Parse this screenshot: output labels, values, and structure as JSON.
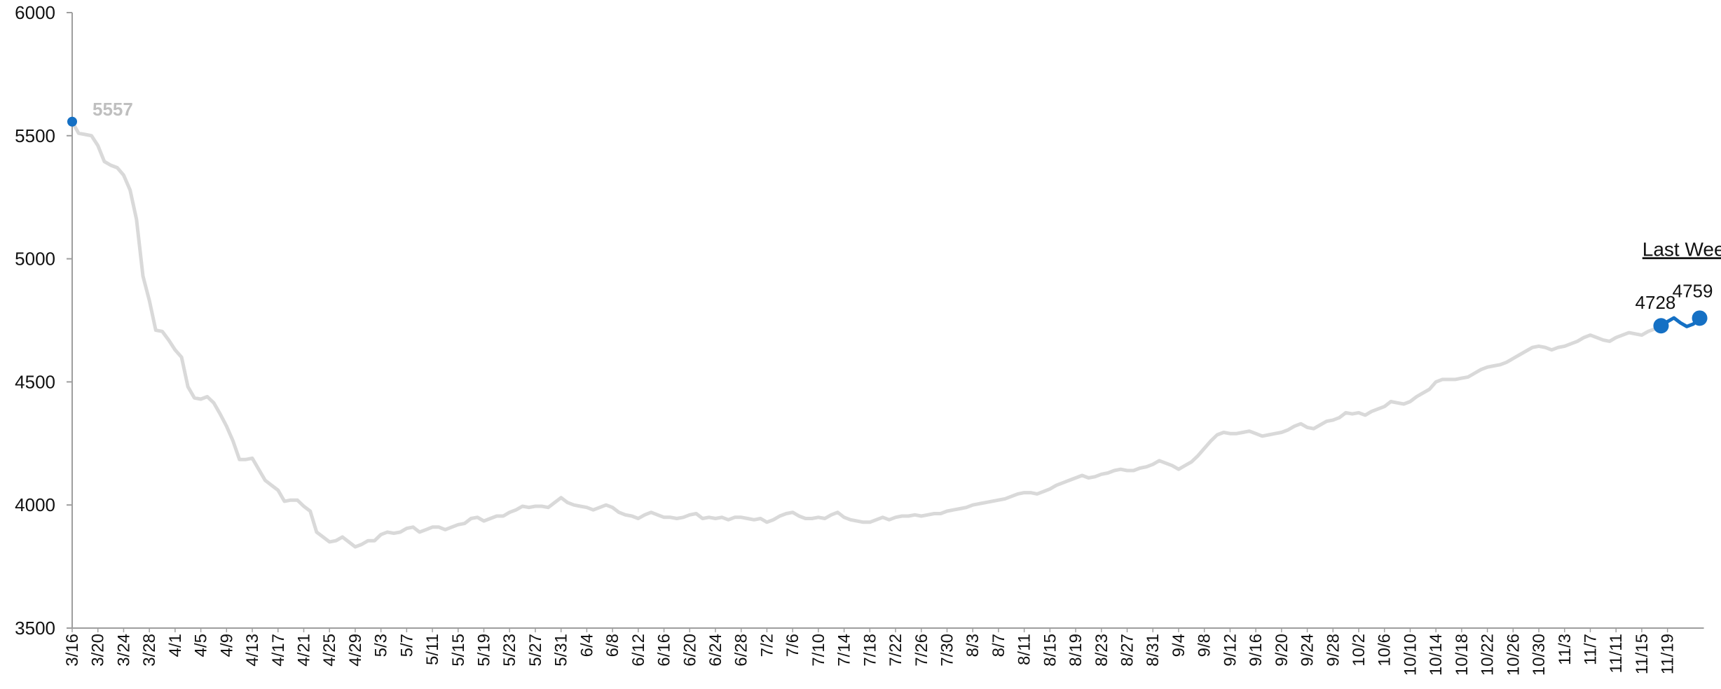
{
  "chart_data": {
    "type": "line",
    "title": "",
    "xlabel": "",
    "ylabel": "",
    "ylim": [
      3500,
      6000
    ],
    "yticks": [
      "6000",
      "5500",
      "5000",
      "4500",
      "4000",
      "3500"
    ],
    "xticks": [
      "3/16",
      "3/20",
      "3/24",
      "3/28",
      "4/1",
      "4/5",
      "4/9",
      "4/13",
      "4/17",
      "4/21",
      "4/25",
      "4/29",
      "5/3",
      "5/7",
      "5/11",
      "5/15",
      "5/19",
      "5/23",
      "5/27",
      "5/31",
      "6/4",
      "6/8",
      "6/12",
      "6/16",
      "6/20",
      "6/24",
      "6/28",
      "7/2",
      "7/6",
      "7/10",
      "7/14",
      "7/18",
      "7/22",
      "7/26",
      "7/30",
      "8/3",
      "8/7",
      "8/11",
      "8/15",
      "8/19",
      "8/23",
      "8/27",
      "8/31",
      "9/4",
      "9/8",
      "9/12",
      "9/16",
      "9/20",
      "9/24",
      "9/28",
      "10/2",
      "10/6",
      "10/10",
      "10/14",
      "10/18",
      "10/22",
      "10/26",
      "10/30",
      "11/3",
      "11/7",
      "11/11",
      "11/15",
      "11/19"
    ],
    "grid": false,
    "series": [
      {
        "role": "history",
        "color": "#d9d9d9",
        "x_start": "3/16",
        "x_end": "11/13",
        "values": [
          5557,
          5510,
          5505,
          5500,
          5460,
          5395,
          5380,
          5370,
          5340,
          5280,
          5160,
          4930,
          4830,
          4710,
          4705,
          4670,
          4630,
          4600,
          4480,
          4435,
          4430,
          4440,
          4415,
          4370,
          4320,
          4260,
          4185,
          4185,
          4190,
          4145,
          4100,
          4080,
          4060,
          4015,
          4020,
          4020,
          3995,
          3975,
          3890,
          3870,
          3850,
          3855,
          3870,
          3850,
          3830,
          3840,
          3855,
          3855,
          3880,
          3890,
          3885,
          3890,
          3905,
          3910,
          3890,
          3900,
          3910,
          3910,
          3900,
          3910,
          3920,
          3925,
          3945,
          3950,
          3935,
          3945,
          3955,
          3955,
          3970,
          3980,
          3995,
          3990,
          3995,
          3995,
          3990,
          4010,
          4030,
          4010,
          4000,
          3995,
          3990,
          3980,
          3990,
          4000,
          3990,
          3970,
          3960,
          3955,
          3945,
          3960,
          3970,
          3960,
          3950,
          3950,
          3945,
          3950,
          3960,
          3965,
          3945,
          3950,
          3945,
          3950,
          3940,
          3950,
          3950,
          3945,
          3940,
          3945,
          3930,
          3940,
          3955,
          3965,
          3970,
          3955,
          3945,
          3945,
          3950,
          3945,
          3960,
          3970,
          3950,
          3940,
          3935,
          3930,
          3930,
          3940,
          3950,
          3940,
          3950,
          3955,
          3955,
          3960,
          3955,
          3960,
          3965,
          3965,
          3975,
          3980,
          3985,
          3990,
          4000,
          4005,
          4010,
          4015,
          4020,
          4025,
          4035,
          4045,
          4050,
          4050,
          4045,
          4055,
          4065,
          4080,
          4090,
          4100,
          4110,
          4120,
          4110,
          4115,
          4125,
          4130,
          4140,
          4145,
          4140,
          4140,
          4150,
          4155,
          4165,
          4180,
          4170,
          4160,
          4145,
          4160,
          4175,
          4200,
          4230,
          4260,
          4285,
          4295,
          4290,
          4290,
          4295,
          4300,
          4290,
          4280,
          4285,
          4290,
          4295,
          4305,
          4320,
          4330,
          4315,
          4310,
          4325,
          4340,
          4345,
          4355,
          4375,
          4370,
          4375,
          4365,
          4380,
          4390,
          4400,
          4420,
          4415,
          4410,
          4420,
          4440,
          4455,
          4470,
          4500,
          4510,
          4510,
          4510,
          4515,
          4520,
          4535,
          4550,
          4560,
          4565,
          4570,
          4580,
          4595,
          4610,
          4625,
          4640,
          4645,
          4640,
          4630,
          4640,
          4645,
          4655,
          4665,
          4680,
          4690,
          4680,
          4670,
          4665,
          4680,
          4690,
          4700,
          4695,
          4690,
          4705,
          4715,
          4728
        ]
      },
      {
        "role": "last_week",
        "color": "#1570c4",
        "values": [
          4728,
          4745,
          4760,
          4740,
          4725,
          4735,
          4759
        ]
      }
    ],
    "data_labels": {
      "start": "5557",
      "last_week_start": "4728",
      "last_week_end": "4759"
    },
    "annotation": "Last Week"
  }
}
